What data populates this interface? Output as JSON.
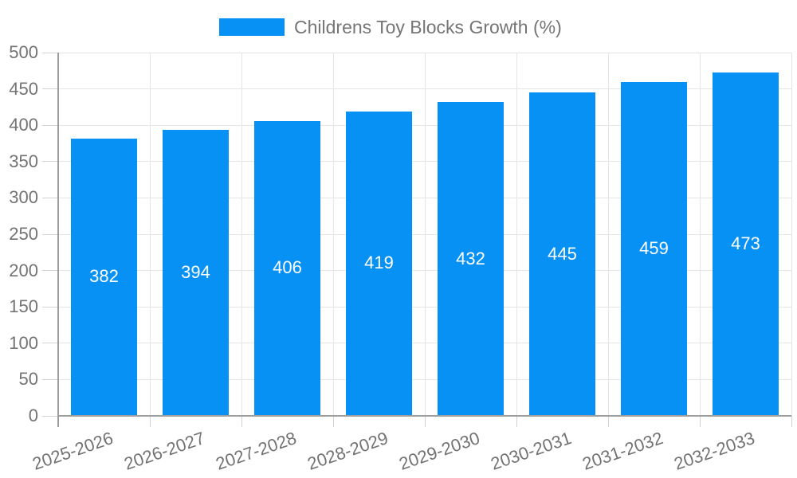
{
  "chart_data": {
    "type": "bar",
    "title": "Childrens Toy Blocks Growth (%)",
    "legend": [
      "Childrens Toy Blocks Growth (%)"
    ],
    "legend_position": "top",
    "categories": [
      "2025-2026",
      "2026-2027",
      "2027-2028",
      "2028-2029",
      "2029-2030",
      "2030-2031",
      "2031-2032",
      "2032-2033"
    ],
    "values": [
      382,
      394,
      406,
      419,
      432,
      445,
      459,
      473
    ],
    "value_labels": [
      "382",
      "394",
      "406",
      "419",
      "432",
      "445",
      "459",
      "473"
    ],
    "xlabel": "",
    "ylabel": "",
    "ylim": [
      0,
      500
    ],
    "ytick_step": 50,
    "yticks": [
      0,
      50,
      100,
      150,
      200,
      250,
      300,
      350,
      400,
      450,
      500
    ],
    "grid": true,
    "bar_color": "#0791f5",
    "value_label_color": "#ffffff"
  },
  "colors": {
    "grid": "#e5e5e5",
    "tick": "#d2d2d2",
    "axis": "#9e9e9e",
    "text": "#737373",
    "legend_text": "#757575",
    "background": "#ffffff"
  }
}
